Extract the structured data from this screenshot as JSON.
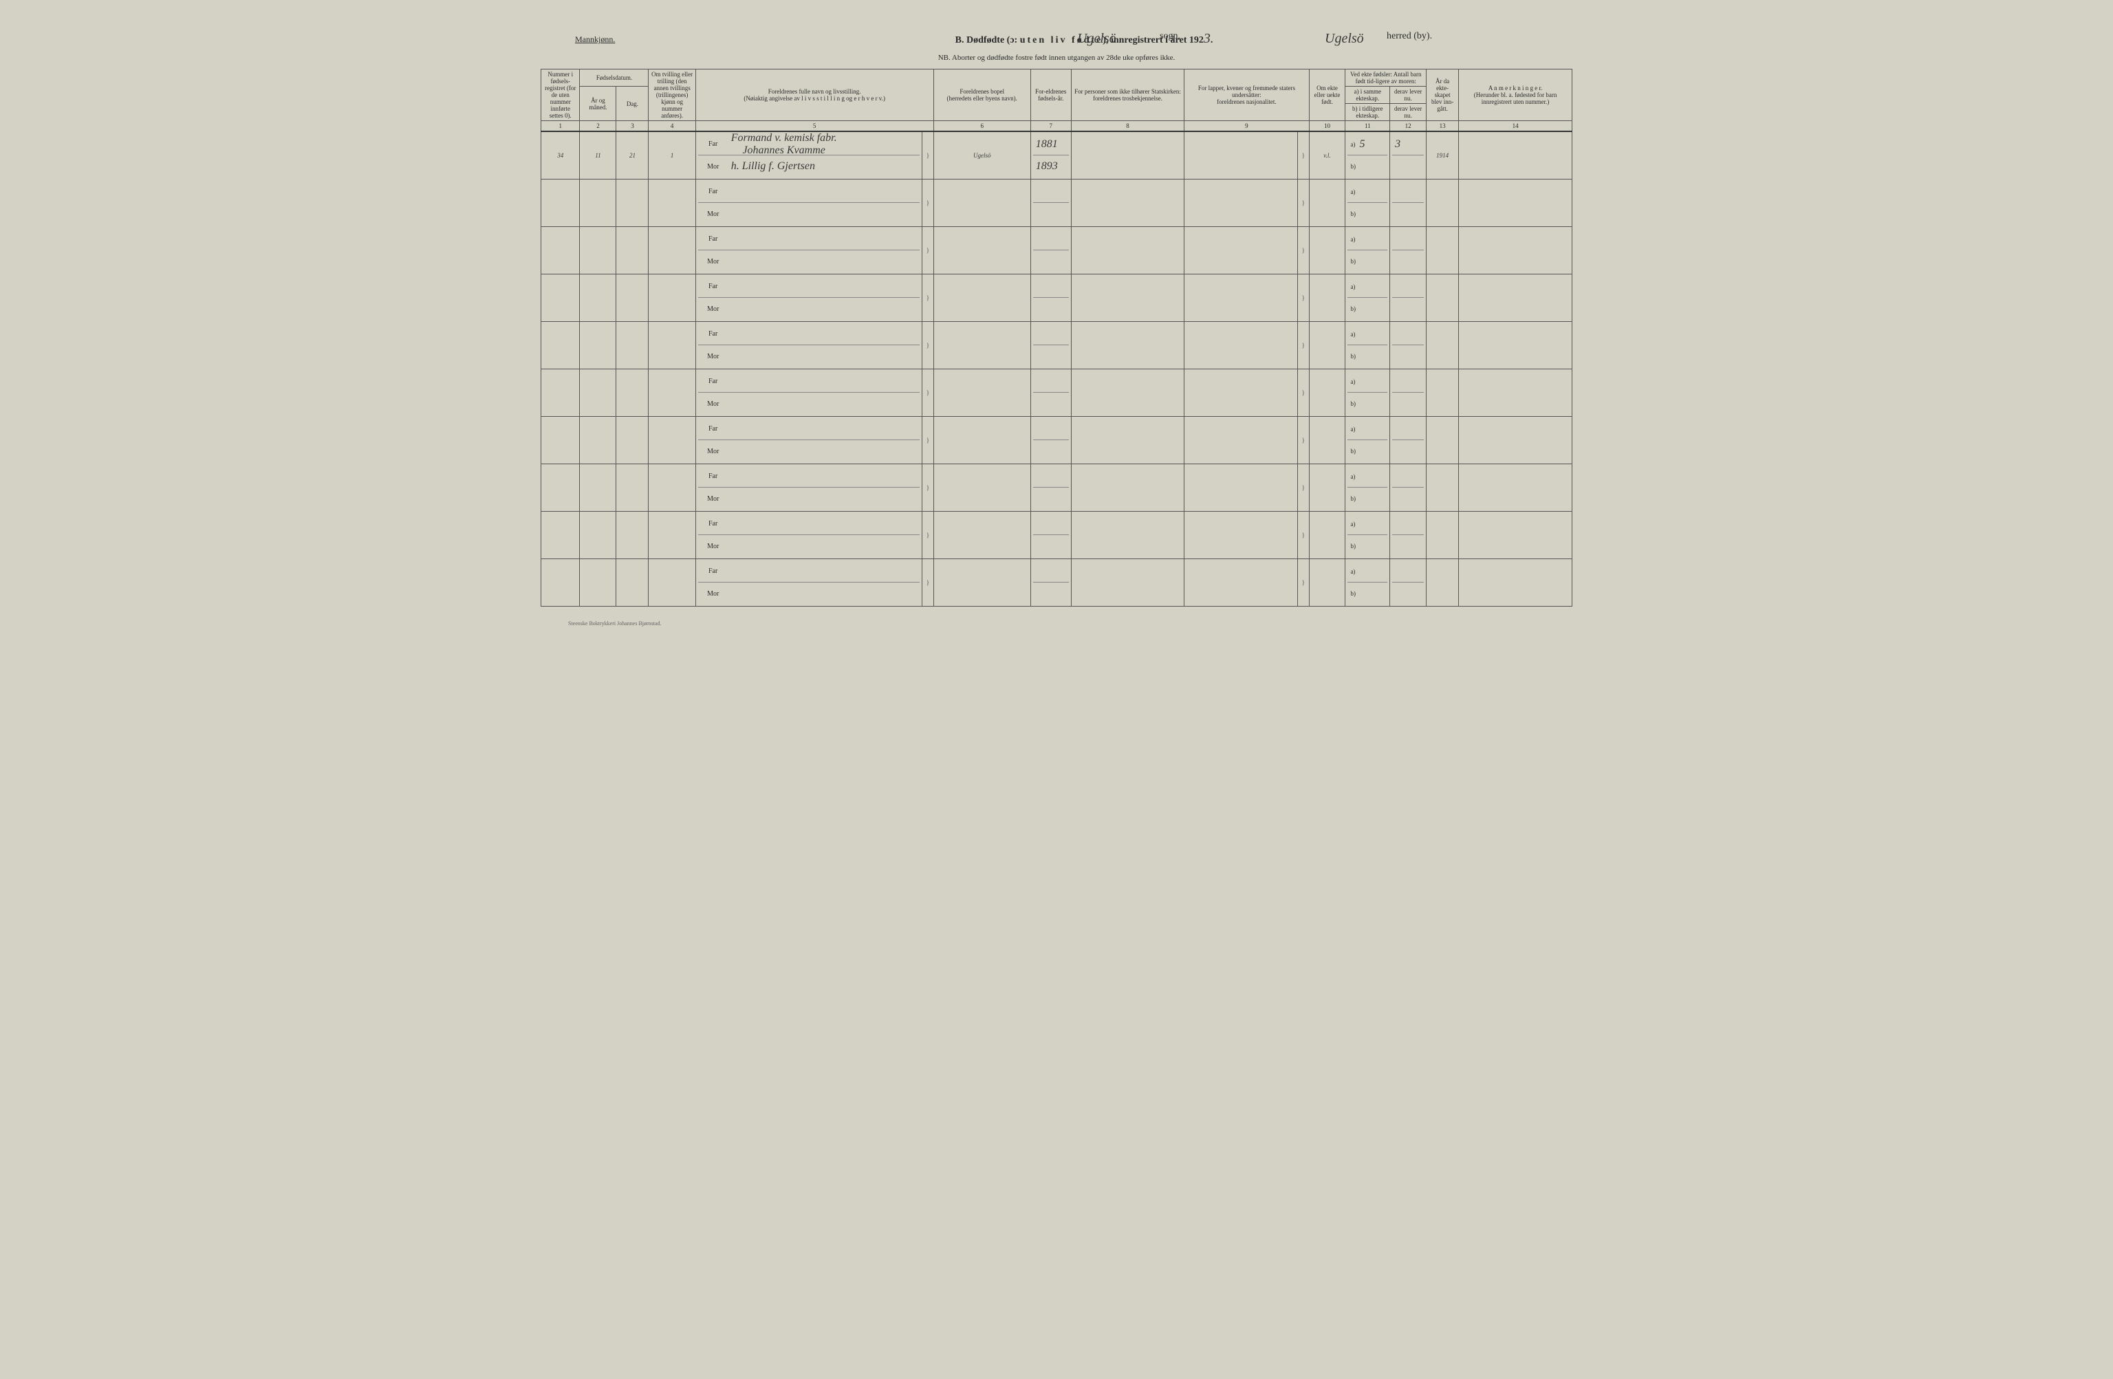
{
  "corner_label": "Mannkjønn.",
  "title": {
    "prefix": "B.  Dødfødte (ɔ:",
    "spaced": "uten liv fødte",
    "suffix": "), innregistrert i året 192",
    "year_digit": "3",
    "period": ".",
    "sogn_hand": "Ugelsö",
    "sogn_label": "sogn,",
    "herred_hand": "Ugelsö",
    "herred_label": "herred (by)."
  },
  "subtitle": "NB.  Aborter og dødfødte fostre født innen utgangen av 28de uke opføres ikke.",
  "headers": {
    "c1": "Nummer i fødsels-registret (for de uten nummer innførte settes 0).",
    "c2_top": "Fødselsdatum.",
    "c2a": "År og måned.",
    "c2b": "Dag.",
    "c4": "Om tvilling eller trilling (den annen tvillings (trillingenes) kjønn og nummer anføres).",
    "c5a": "Foreldrenes fulle navn og livsstilling.",
    "c5b": "(Nøiaktig angivelse av l i v s s t i l l i n g og e r h v e r v.)",
    "c6a": "Foreldrenes bopel",
    "c6b": "(herredets eller byens navn).",
    "c7": "For-eldrenes fødsels-år.",
    "c8a": "For personer som ikke tilhører Statskirken:",
    "c8b": "foreldrenes trosbekjennelse.",
    "c9a": "For lapper, kvener og fremmede staters undersåtter:",
    "c9b": "foreldrenes nasjonalitet.",
    "c10": "Om ekte eller uekte født.",
    "c11_top": "Ved ekte fødsler: Antall barn født tid-ligere av moren:",
    "c11a": "a) i samme ekteskap.",
    "c11b": "derav lever nu.",
    "c11c": "b) i tidligere ekteskap.",
    "c11d": "derav lever nu.",
    "c13": "År da ekte-skapet blev inn-gått.",
    "c14a": "A n m e r k n i n g e r.",
    "c14b": "(Herunder bl. a. fødested for barn innregistrert uten nummer.)"
  },
  "colnums": [
    "1",
    "2",
    "3",
    "4",
    "5",
    "6",
    "7",
    "8",
    "9",
    "10",
    "11",
    "12",
    "13",
    "14"
  ],
  "row1": {
    "num": "34",
    "ym": "11",
    "day": "21",
    "twin": "1",
    "far_occ": "Formand v. kemisk fabr.",
    "far_name": "Johannes Kvamme",
    "mor_name": "h. Lillig f. Gjertsen",
    "bopel": "Ugelsö",
    "far_year": "1881",
    "mor_year": "1893",
    "ekte": "v.l.",
    "c11a_val": "5",
    "c11b_val": "3",
    "c13_val": "1914"
  },
  "far_label": "Far",
  "mor_label": "Mor",
  "a_label": "a)",
  "b_label": "b)",
  "footer": "Steenske Boktrykkeri Johannes Bjørnstad."
}
